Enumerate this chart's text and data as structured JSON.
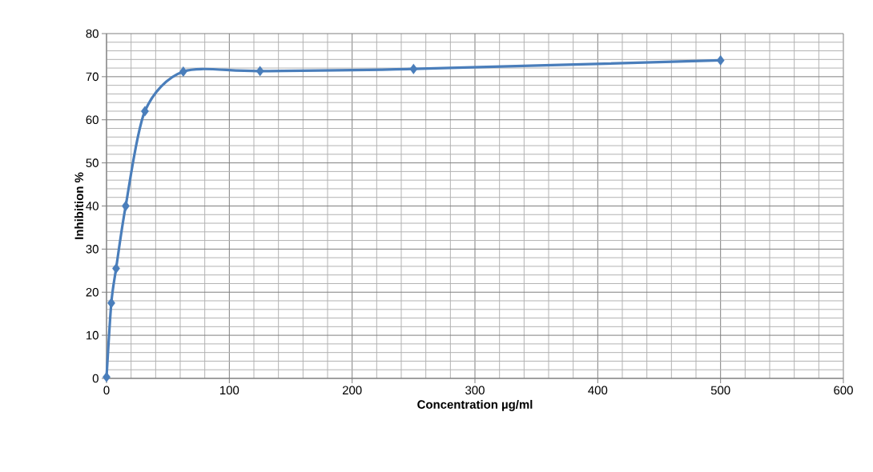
{
  "chart_data": {
    "type": "line",
    "xlabel": "Concentration µg/ml",
    "ylabel": "Inhibition %",
    "x": [
      0,
      3.9,
      7.8,
      15.6,
      31.25,
      62.5,
      125,
      250,
      500
    ],
    "series": [
      {
        "color": "#4a7ebb",
        "values": [
          0.3,
          17.5,
          25.5,
          40,
          62,
          71.2,
          71.3,
          71.8,
          73.8
        ]
      }
    ],
    "xlim": [
      0,
      600
    ],
    "xticks": [
      0,
      100,
      200,
      300,
      400,
      500,
      600
    ],
    "ylim": [
      0,
      80
    ],
    "yticks": [
      0,
      10,
      20,
      30,
      40,
      50,
      60,
      70,
      80
    ],
    "grid": true,
    "marker": "diamond",
    "line_style": "solid"
  }
}
